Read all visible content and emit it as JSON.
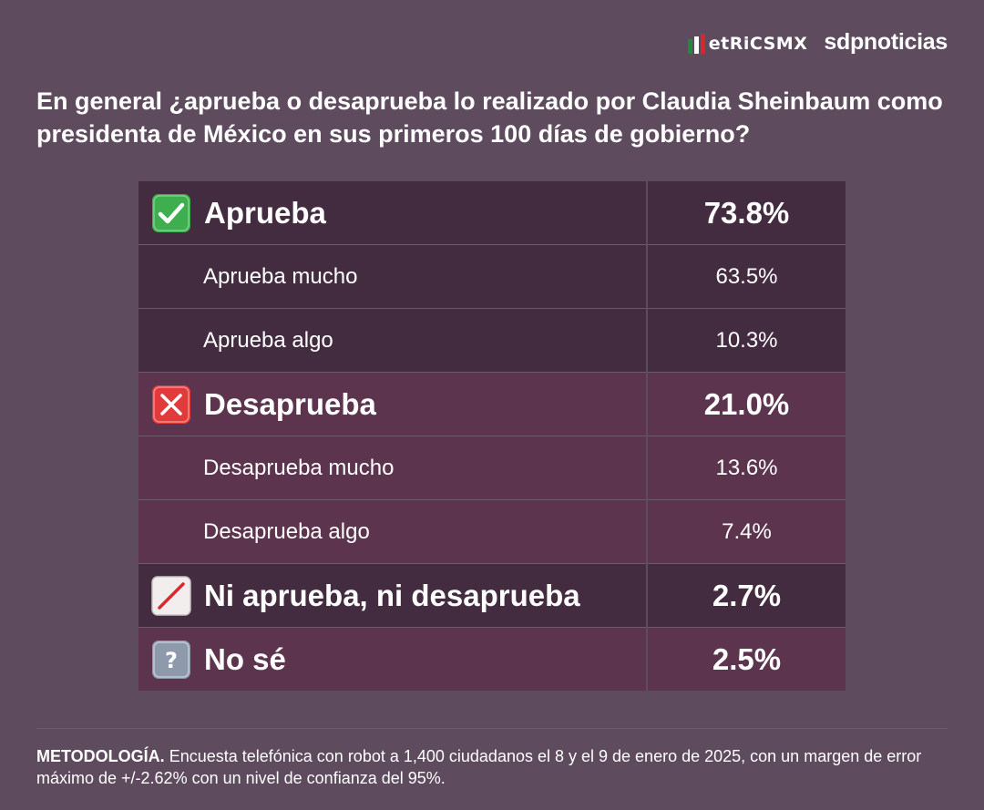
{
  "header": {
    "logo_metrics": "etRiCSMX",
    "logo_sdp": "sdpnoticias"
  },
  "question": "En general ¿aprueba o desaprueba lo realizado por Claudia Sheinbaum como presidenta de México en sus primeros 100 días de gobierno?",
  "chart_data": {
    "type": "table",
    "title": "En general ¿aprueba o desaprueba lo realizado por Claudia Sheinbaum como presidenta de México en sus primeros 100 días de gobierno?",
    "rows": [
      {
        "label": "Aprueba",
        "value": "73.8%",
        "level": "main",
        "icon": "check-mark-icon"
      },
      {
        "label": "Aprueba mucho",
        "value": "63.5%",
        "level": "sub"
      },
      {
        "label": "Aprueba algo",
        "value": "10.3%",
        "level": "sub"
      },
      {
        "label": "Desaprueba",
        "value": "21.0%",
        "level": "main",
        "icon": "cross-mark-icon"
      },
      {
        "label": "Desaprueba mucho",
        "value": "13.6%",
        "level": "sub"
      },
      {
        "label": "Desaprueba algo",
        "value": "7.4%",
        "level": "sub"
      },
      {
        "label": "Ni aprueba, ni desaprueba",
        "value": "2.7%",
        "level": "main",
        "icon": "slash-icon"
      },
      {
        "label": "No sé",
        "value": "2.5%",
        "level": "main",
        "icon": "question-mark-icon"
      }
    ]
  },
  "methodology": {
    "label": "METODOLOGÍA.",
    "text": "Encuesta telefónica con robot a 1,400 ciudadanos el 8 y el 9 de enero de 2025, con un margen de error máximo de +/-2.62% con un nivel de confianza del 95%."
  },
  "colors": {
    "background": "#5f4b5e",
    "row_dark": "#442c40",
    "row_rose": "#5c344e",
    "check_green": "#3fae4f",
    "cross_red": "#e23b3b"
  }
}
